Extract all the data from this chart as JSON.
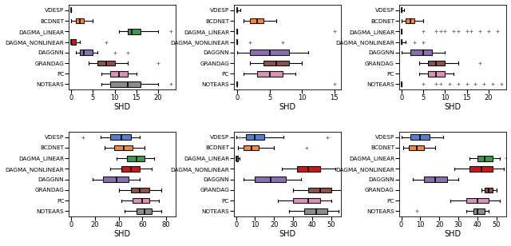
{
  "methods": [
    "VDESP",
    "BCDNET",
    "DAGMA_LINEAR",
    "DAGMA_NONLINEAR",
    "DAGGNN",
    "GRANDAG",
    "PC",
    "NOTEARS"
  ],
  "colors": [
    "#4472c4",
    "#ed7d31",
    "#2e8b3a",
    "#c00000",
    "#7b61a8",
    "#7b4136",
    "#d886b0",
    "#808080"
  ],
  "plots": [
    {
      "xlabel": "SHD",
      "xlim": [
        -0.5,
        24
      ],
      "xticks": [
        0,
        5,
        10,
        15,
        20
      ],
      "data": [
        {
          "med": 0,
          "q1": 0,
          "q3": 0,
          "whislo": 0,
          "whishi": 0,
          "fliers": []
        },
        {
          "med": 2,
          "q1": 1,
          "q3": 3,
          "whislo": 0,
          "whishi": 5,
          "fliers": []
        },
        {
          "med": 14,
          "q1": 13,
          "q3": 16,
          "whislo": 11,
          "whishi": 20,
          "fliers": [
            23
          ]
        },
        {
          "med": 0,
          "q1": 0,
          "q3": 1,
          "whislo": 0,
          "whishi": 2,
          "fliers": [
            8
          ]
        },
        {
          "med": 3,
          "q1": 2,
          "q3": 5,
          "whislo": 1,
          "whishi": 6,
          "fliers": [
            10,
            13
          ]
        },
        {
          "med": 8,
          "q1": 6,
          "q3": 10,
          "whislo": 4,
          "whishi": 13,
          "fliers": [
            20
          ]
        },
        {
          "med": 11,
          "q1": 9,
          "q3": 13,
          "whislo": 7,
          "whishi": 15,
          "fliers": []
        },
        {
          "med": 13,
          "q1": 9,
          "q3": 16,
          "whislo": 7,
          "whishi": 20,
          "fliers": [
            23
          ]
        }
      ]
    },
    {
      "xlabel": "SHD",
      "xlim": [
        -0.5,
        16
      ],
      "xticks": [
        0,
        5,
        10,
        15
      ],
      "data": [
        {
          "med": 0,
          "q1": 0,
          "q3": 0,
          "whislo": 0,
          "whishi": 0.5,
          "fliers": []
        },
        {
          "med": 3,
          "q1": 2,
          "q3": 4,
          "whislo": 1,
          "whishi": 6,
          "fliers": []
        },
        {
          "med": 0,
          "q1": 0,
          "q3": 0,
          "whislo": 0,
          "whishi": 0,
          "fliers": [
            15
          ]
        },
        {
          "med": 0,
          "q1": 0,
          "q3": 0,
          "whislo": 0,
          "whishi": 0,
          "fliers": [
            2,
            7
          ]
        },
        {
          "med": 5,
          "q1": 2,
          "q3": 8,
          "whislo": 0,
          "whishi": 11,
          "fliers": []
        },
        {
          "med": 6,
          "q1": 4,
          "q3": 8,
          "whislo": 2,
          "whishi": 10,
          "fliers": []
        },
        {
          "med": 5,
          "q1": 3,
          "q3": 7,
          "whislo": 1,
          "whishi": 9,
          "fliers": []
        },
        {
          "med": 0,
          "q1": 0,
          "q3": 0,
          "whislo": 0,
          "whishi": 0,
          "fliers": [
            15
          ]
        }
      ]
    },
    {
      "xlabel": "SHD",
      "xlim": [
        -0.5,
        24
      ],
      "xticks": [
        0,
        5,
        10,
        15,
        20
      ],
      "data": [
        {
          "med": 0,
          "q1": 0,
          "q3": 0,
          "whislo": 0,
          "whishi": 0.5,
          "fliers": []
        },
        {
          "med": 2,
          "q1": 1,
          "q3": 3,
          "whislo": 0,
          "whishi": 5,
          "fliers": []
        },
        {
          "med": 0,
          "q1": 0,
          "q3": 0,
          "whislo": 0,
          "whishi": 0,
          "fliers": [
            5,
            8,
            9,
            10,
            12,
            13,
            15,
            16,
            18,
            20,
            22
          ]
        },
        {
          "med": 0,
          "q1": 0,
          "q3": 0,
          "whislo": 0,
          "whishi": 1,
          "fliers": [
            3,
            5
          ]
        },
        {
          "med": 5,
          "q1": 2,
          "q3": 7,
          "whislo": 0,
          "whishi": 10,
          "fliers": []
        },
        {
          "med": 8,
          "q1": 6,
          "q3": 10,
          "whislo": 4,
          "whishi": 13,
          "fliers": [
            18
          ]
        },
        {
          "med": 8,
          "q1": 6,
          "q3": 10,
          "whislo": 4,
          "whishi": 12,
          "fliers": []
        },
        {
          "med": 0,
          "q1": 0,
          "q3": 0,
          "whislo": 0,
          "whishi": 0,
          "fliers": [
            5,
            8,
            9,
            11,
            13,
            15,
            17,
            19,
            21,
            23
          ]
        }
      ]
    },
    {
      "xlabel": "SHD",
      "xlim": [
        -2,
        88
      ],
      "xticks": [
        0,
        20,
        40,
        60,
        80
      ],
      "data": [
        {
          "med": 42,
          "q1": 33,
          "q3": 50,
          "whislo": 25,
          "whishi": 58,
          "fliers": [
            10
          ]
        },
        {
          "med": 44,
          "q1": 36,
          "q3": 52,
          "whislo": 28,
          "whishi": 62,
          "fliers": []
        },
        {
          "med": 55,
          "q1": 47,
          "q3": 62,
          "whislo": 38,
          "whishi": 70,
          "fliers": []
        },
        {
          "med": 50,
          "q1": 42,
          "q3": 58,
          "whislo": 33,
          "whishi": 68,
          "fliers": []
        },
        {
          "med": 38,
          "q1": 27,
          "q3": 48,
          "whislo": 18,
          "whishi": 58,
          "fliers": []
        },
        {
          "med": 58,
          "q1": 50,
          "q3": 66,
          "whislo": 40,
          "whishi": 76,
          "fliers": []
        },
        {
          "med": 60,
          "q1": 52,
          "q3": 66,
          "whislo": 42,
          "whishi": 74,
          "fliers": []
        },
        {
          "med": 62,
          "q1": 55,
          "q3": 68,
          "whislo": 45,
          "whishi": 76,
          "fliers": []
        }
      ]
    },
    {
      "xlabel": "SHD",
      "xlim": [
        -1,
        55
      ],
      "xticks": [
        0,
        10,
        20,
        30,
        40,
        50
      ],
      "data": [
        {
          "med": 10,
          "q1": 5,
          "q3": 15,
          "whislo": 0,
          "whishi": 25,
          "fliers": [
            2,
            48
          ]
        },
        {
          "med": 8,
          "q1": 4,
          "q3": 12,
          "whislo": 1,
          "whishi": 20,
          "fliers": [
            37
          ]
        },
        {
          "med": 0,
          "q1": 0,
          "q3": 1,
          "whislo": 0,
          "whishi": 2,
          "fliers": []
        },
        {
          "med": 38,
          "q1": 32,
          "q3": 44,
          "whislo": 24,
          "whishi": 52,
          "fliers": []
        },
        {
          "med": 18,
          "q1": 10,
          "q3": 26,
          "whislo": 4,
          "whishi": 34,
          "fliers": []
        },
        {
          "med": 44,
          "q1": 38,
          "q3": 50,
          "whislo": 30,
          "whishi": 56,
          "fliers": []
        },
        {
          "med": 38,
          "q1": 30,
          "q3": 44,
          "whislo": 22,
          "whishi": 50,
          "fliers": []
        },
        {
          "med": 42,
          "q1": 36,
          "q3": 48,
          "whislo": 28,
          "whishi": 54,
          "fliers": []
        }
      ]
    },
    {
      "xlabel": "SHD",
      "xlim": [
        -1,
        55
      ],
      "xticks": [
        0,
        10,
        20,
        30,
        40,
        50
      ],
      "data": [
        {
          "med": 10,
          "q1": 5,
          "q3": 15,
          "whislo": 0,
          "whishi": 22,
          "fliers": []
        },
        {
          "med": 8,
          "q1": 4,
          "q3": 12,
          "whislo": 1,
          "whishi": 18,
          "fliers": []
        },
        {
          "med": 44,
          "q1": 40,
          "q3": 48,
          "whislo": 36,
          "whishi": 52,
          "fliers": [
            55
          ]
        },
        {
          "med": 42,
          "q1": 36,
          "q3": 48,
          "whislo": 28,
          "whishi": 54,
          "fliers": []
        },
        {
          "med": 18,
          "q1": 12,
          "q3": 24,
          "whislo": 6,
          "whishi": 30,
          "fliers": []
        },
        {
          "med": 46,
          "q1": 44,
          "q3": 48,
          "whislo": 42,
          "whishi": 50,
          "fliers": []
        },
        {
          "med": 40,
          "q1": 34,
          "q3": 46,
          "whislo": 26,
          "whishi": 52,
          "fliers": []
        },
        {
          "med": 40,
          "q1": 38,
          "q3": 44,
          "whislo": 34,
          "whishi": 46,
          "fliers": [
            8
          ]
        }
      ]
    }
  ]
}
